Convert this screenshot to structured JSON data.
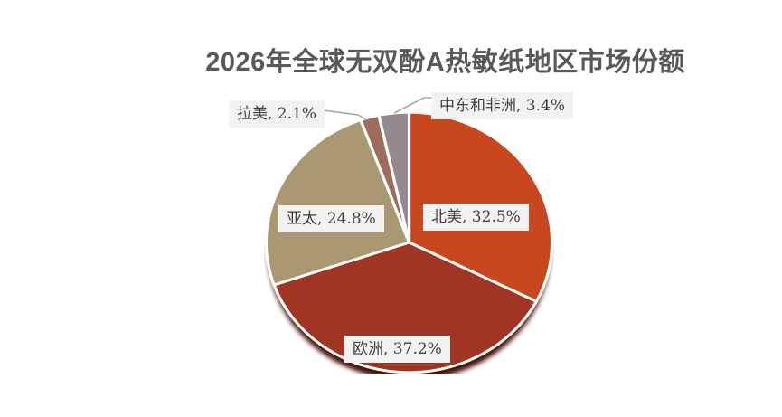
{
  "title": "2026年全球无双酚A热敏纸地区市场份额",
  "chart_data": {
    "type": "pie",
    "title": "2026年全球无双酚A热敏纸地区市场份额",
    "categories": [
      "北美",
      "欧洲",
      "亚太",
      "拉美",
      "中东和非洲"
    ],
    "values": [
      32.5,
      37.2,
      24.8,
      2.1,
      3.4
    ],
    "unit": "%",
    "start_angle_deg": 0,
    "direction": "clockwise",
    "legend": "none",
    "labels_shown_as": "category, value%",
    "slices": [
      {
        "name": "北美",
        "value": 32.5,
        "label": "北美, 32.5%",
        "color": "#c7481f"
      },
      {
        "name": "欧洲",
        "value": 37.2,
        "label": "欧洲, 37.2%",
        "color": "#a13524"
      },
      {
        "name": "亚太",
        "value": 24.8,
        "label": "亚太, 24.8%",
        "color": "#a99872"
      },
      {
        "name": "拉美",
        "value": 2.1,
        "label": "拉美, 2.1%",
        "color": "#9e6c5d"
      },
      {
        "name": "中东和非洲",
        "value": 3.4,
        "label": "中东和非洲, 3.4%",
        "color": "#95898e"
      }
    ]
  },
  "colors": {
    "background": "#ffffff",
    "title_text": "#595959",
    "label_text": "#3f3f3f",
    "label_bg": "#f2f2f1",
    "slice_border": "#ffffff",
    "leader_line": "#a6a6a6",
    "pie_shadow": "#4a130a"
  }
}
